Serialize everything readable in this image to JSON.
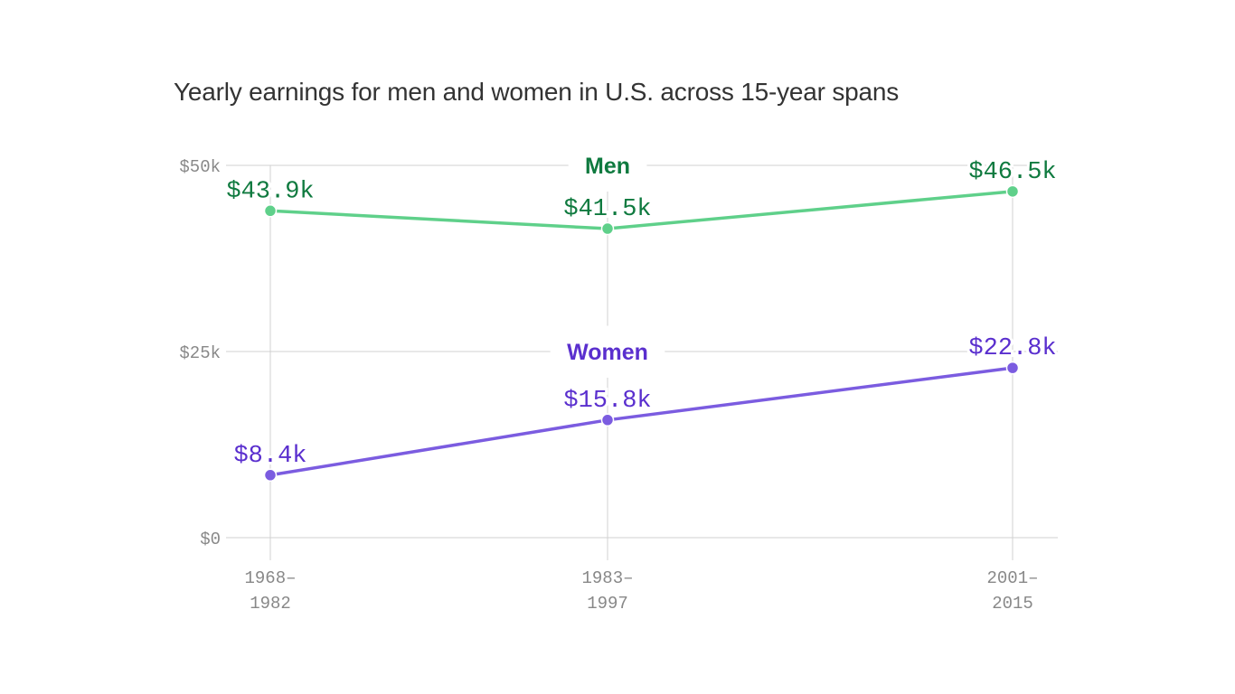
{
  "chart_data": {
    "type": "line",
    "title": "Yearly earnings for men and women in U.S. across 15-year spans",
    "categories": [
      [
        "1968–",
        "1982"
      ],
      [
        "1983–",
        "1997"
      ],
      [
        "2001–",
        "2015"
      ]
    ],
    "ylim": [
      0,
      50
    ],
    "yticks": [
      {
        "value": 0,
        "label": "$0"
      },
      {
        "value": 25,
        "label": "$25k"
      },
      {
        "value": 50,
        "label": "$50k"
      }
    ],
    "grid": true,
    "series": [
      {
        "name": "Men",
        "values": [
          43.9,
          41.5,
          46.5
        ],
        "labels": [
          "$43.9k",
          "$41.5k",
          "$46.5k"
        ],
        "line_color": "#5fd08a",
        "text_color": "#0f7a3f"
      },
      {
        "name": "Women",
        "values": [
          8.4,
          15.8,
          22.8
        ],
        "labels": [
          "$8.4k",
          "$15.8k",
          "$22.8k"
        ],
        "line_color": "#7b5ce0",
        "text_color": "#5a2fce"
      }
    ]
  }
}
